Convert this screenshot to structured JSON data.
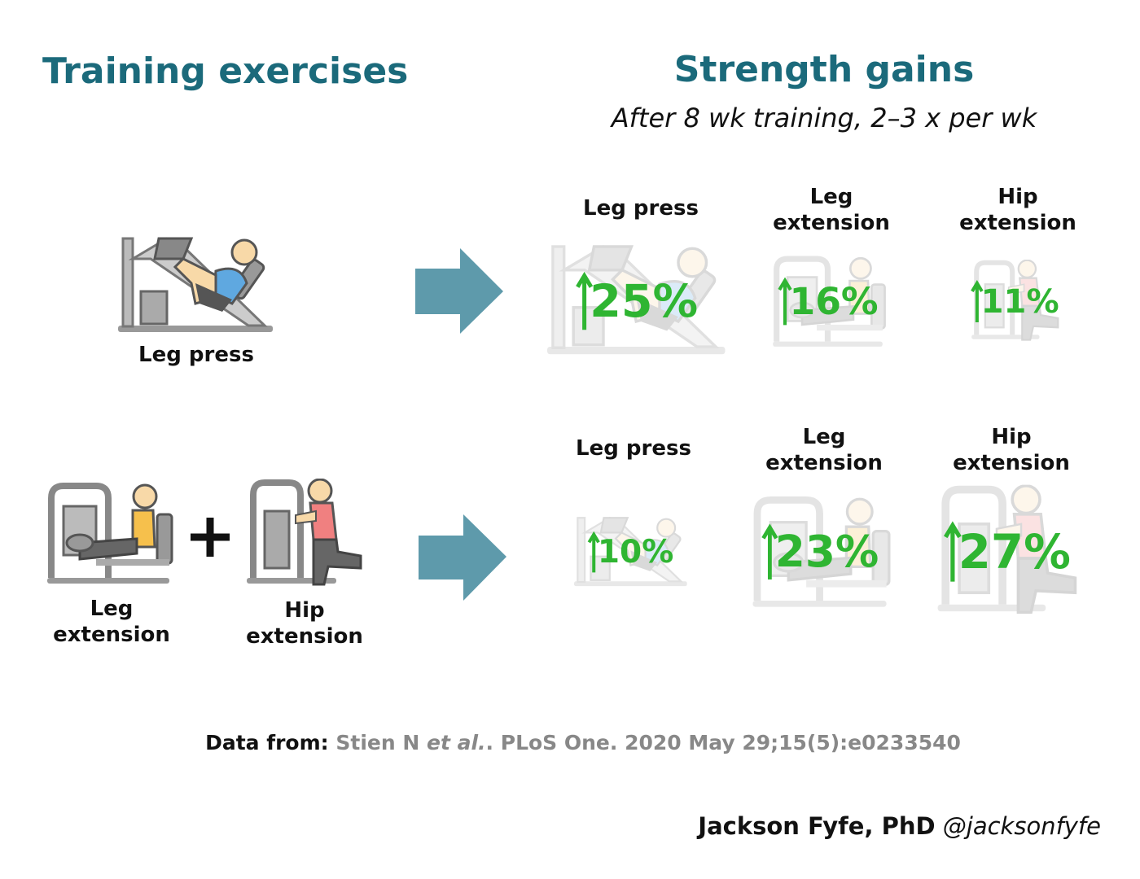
{
  "header": {
    "left_title": "Training exercises",
    "right_title": "Strength gains",
    "subtitle": "After 8 wk training, 2–3 x per wk"
  },
  "rows": [
    {
      "exercises": [
        "Leg press"
      ],
      "gains": [
        {
          "exercise": "Leg press",
          "value": 25,
          "label": "25%"
        },
        {
          "exercise": "Leg extension",
          "value": 16,
          "label": "16%"
        },
        {
          "exercise": "Hip extension",
          "value": 11,
          "label": "11%"
        }
      ]
    },
    {
      "exercises": [
        "Leg extension",
        "Hip extension"
      ],
      "gains": [
        {
          "exercise": "Leg press",
          "value": 10,
          "label": "10%"
        },
        {
          "exercise": "Leg extension",
          "value": 23,
          "label": "23%"
        },
        {
          "exercise": "Hip extension",
          "value": 27,
          "label": "27%"
        }
      ]
    }
  ],
  "citation": {
    "prefix": "Data from:",
    "authors": "Stien N",
    "etal": "et al.",
    "source": ". PLoS One. 2020 May 29;15(5):e0233540"
  },
  "credit": {
    "name": "Jackson Fyfe, PhD",
    "handle": "@jacksonfyfe"
  }
}
